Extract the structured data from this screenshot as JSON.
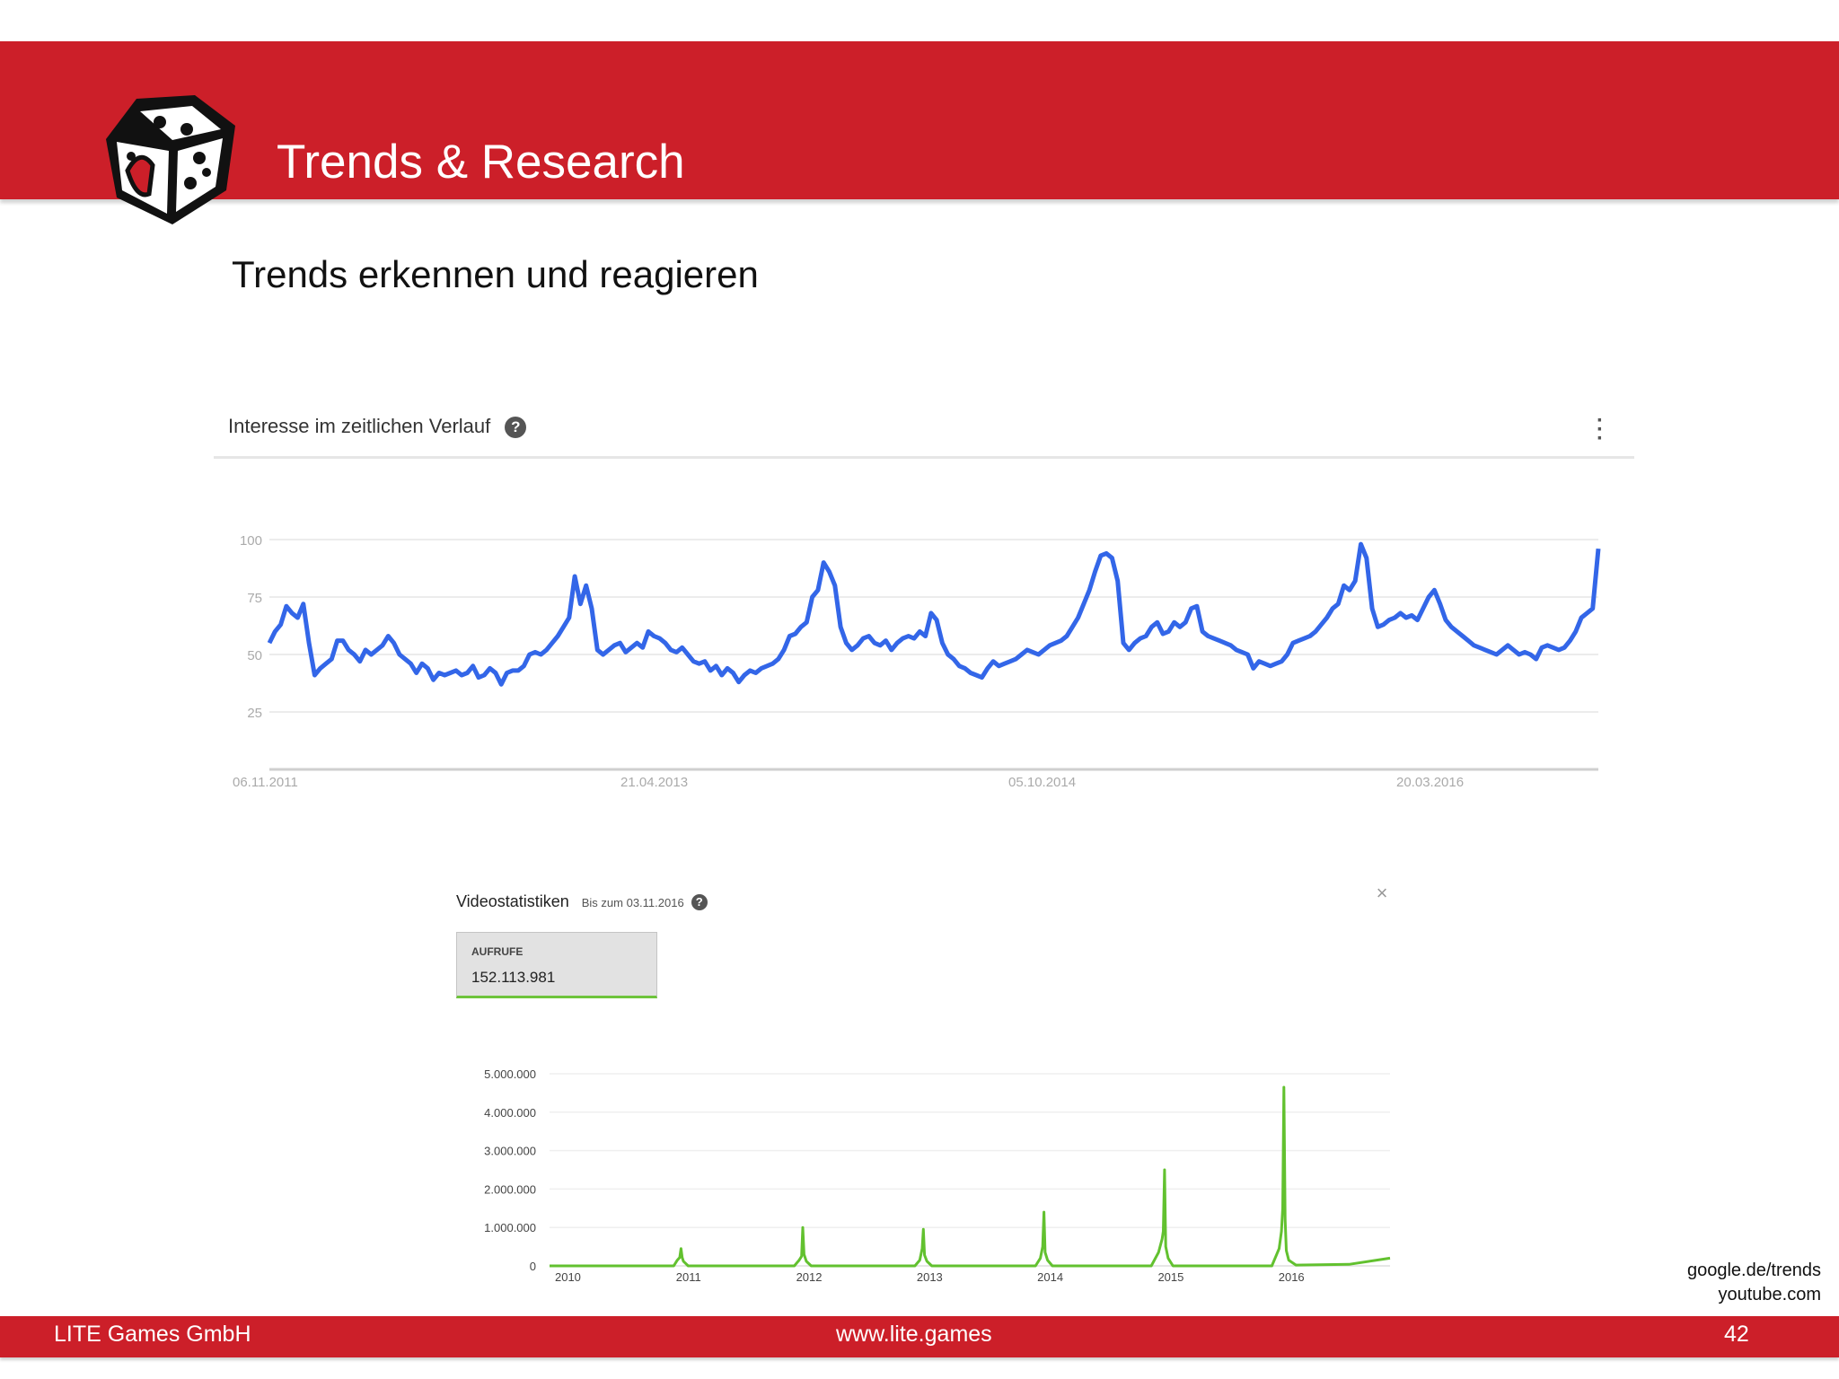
{
  "header": {
    "title": "Trends & Research",
    "logo": "dice-logo"
  },
  "slide": {
    "subtitle": "Trends erkennen und reagieren"
  },
  "trends_card": {
    "title": "Interesse im zeitlichen Verlauf",
    "help_icon": "help-icon",
    "menu_icon": "more-vertical-icon"
  },
  "video_card": {
    "title": "Videostatistiken",
    "subtitle": "Bis zum 03.11.2016",
    "views_label": "AUFRUFE",
    "views_value": "152.113.981",
    "close_icon": "close-icon"
  },
  "sources": [
    "google.de/trends",
    "youtube.com"
  ],
  "footer": {
    "company": "LITE Games GmbH",
    "website": "www.lite.games",
    "page": "42"
  },
  "colors": {
    "brand_red": "#cc1f29",
    "trends_line": "#3366e8",
    "views_line": "#62c12f"
  },
  "chart_data": [
    {
      "type": "line",
      "title": "Interesse im zeitlichen Verlauf",
      "ylim": [
        0,
        100
      ],
      "yticks": [
        100,
        75,
        50,
        25
      ],
      "xticks": [
        "06.11.2011",
        "21.04.2013",
        "05.10.2014",
        "20.03.2016"
      ],
      "x_start": "06.11.2011",
      "x_end": "30.10.2016",
      "grid": true,
      "series": [
        {
          "values": [
            55,
            60,
            63,
            71,
            68,
            66,
            72,
            55,
            41,
            44,
            46,
            48,
            56,
            56,
            52,
            50,
            47,
            52,
            50,
            52,
            54,
            58,
            55,
            50,
            48,
            46,
            42,
            46,
            44,
            39,
            42,
            41,
            42,
            43,
            41,
            42,
            45,
            40,
            41,
            44,
            42,
            37,
            42,
            43,
            43,
            45,
            50,
            51,
            50,
            52,
            55,
            58,
            62,
            66,
            84,
            72,
            80,
            70,
            52,
            50,
            52,
            54,
            55,
            51,
            53,
            55,
            53,
            60,
            58,
            57,
            55,
            52,
            51,
            53,
            50,
            47,
            46,
            47,
            43,
            45,
            41,
            44,
            42,
            38,
            41,
            43,
            42,
            44,
            45,
            46,
            48,
            52,
            58,
            59,
            62,
            64,
            75,
            78,
            90,
            86,
            80,
            62,
            55,
            52,
            54,
            57,
            58,
            55,
            54,
            56,
            52,
            55,
            57,
            58,
            57,
            60,
            58,
            68,
            65,
            55,
            50,
            48,
            45,
            44,
            42,
            41,
            40,
            44,
            47,
            45,
            46,
            47,
            48,
            50,
            52,
            51,
            50,
            52,
            54,
            55,
            56,
            58,
            62,
            66,
            72,
            78,
            86,
            93,
            94,
            92,
            82,
            55,
            52,
            55,
            57,
            58,
            62,
            64,
            59,
            60,
            64,
            62,
            64,
            70,
            71,
            60,
            58,
            57,
            56,
            55,
            54,
            52,
            51,
            50,
            44,
            47,
            46,
            45,
            46,
            47,
            50,
            55,
            56,
            57,
            58,
            60,
            63,
            66,
            70,
            72,
            80,
            78,
            82,
            98,
            92,
            70,
            62,
            63,
            65,
            66,
            68,
            66,
            67,
            65,
            70,
            75,
            78,
            72,
            65,
            62,
            60,
            58,
            56,
            54,
            53,
            52,
            51,
            50,
            52,
            54,
            52,
            50,
            51,
            50,
            48,
            53,
            54,
            53,
            52,
            53,
            56,
            60,
            66,
            68,
            70,
            96
          ]
        }
      ]
    },
    {
      "type": "line",
      "title": "Videostatistiken",
      "ylim": [
        0,
        5000000
      ],
      "yticks": [
        "5.000.000",
        "4.000.000",
        "3.000.000",
        "2.000.000",
        "1.000.000",
        "0"
      ],
      "xticks": [
        "2010",
        "2011",
        "2012",
        "2013",
        "2014",
        "2015",
        "2016"
      ],
      "x_range": [
        2009.87,
        2016.84
      ],
      "grid": true,
      "series": [
        {
          "x": [
            2009.87,
            2010.9,
            2010.93,
            2010.95,
            2010.96,
            2010.97,
            2010.98,
            2011.02,
            2011.9,
            2011.94,
            2011.96,
            2011.97,
            2011.98,
            2012.0,
            2012.04,
            2012.9,
            2012.94,
            2012.96,
            2012.97,
            2012.98,
            2013.0,
            2013.04,
            2013.9,
            2013.94,
            2013.96,
            2013.97,
            2013.98,
            2014.0,
            2014.04,
            2014.86,
            2014.92,
            2014.95,
            2014.96,
            2014.97,
            2014.98,
            2015.0,
            2015.04,
            2015.86,
            2015.92,
            2015.94,
            2015.95,
            2015.96,
            2015.97,
            2015.98,
            2016.0,
            2016.06,
            2016.5,
            2016.84
          ],
          "values": [
            0,
            0,
            150000,
            220000,
            450000,
            220000,
            120000,
            0,
            0,
            150000,
            250000,
            1000000,
            300000,
            120000,
            0,
            0,
            150000,
            450000,
            950000,
            280000,
            120000,
            0,
            0,
            200000,
            500000,
            1400000,
            350000,
            150000,
            0,
            0,
            350000,
            700000,
            900000,
            2500000,
            500000,
            200000,
            0,
            0,
            450000,
            900000,
            1500000,
            4650000,
            1200000,
            400000,
            150000,
            20000,
            40000,
            200000
          ]
        }
      ]
    }
  ]
}
